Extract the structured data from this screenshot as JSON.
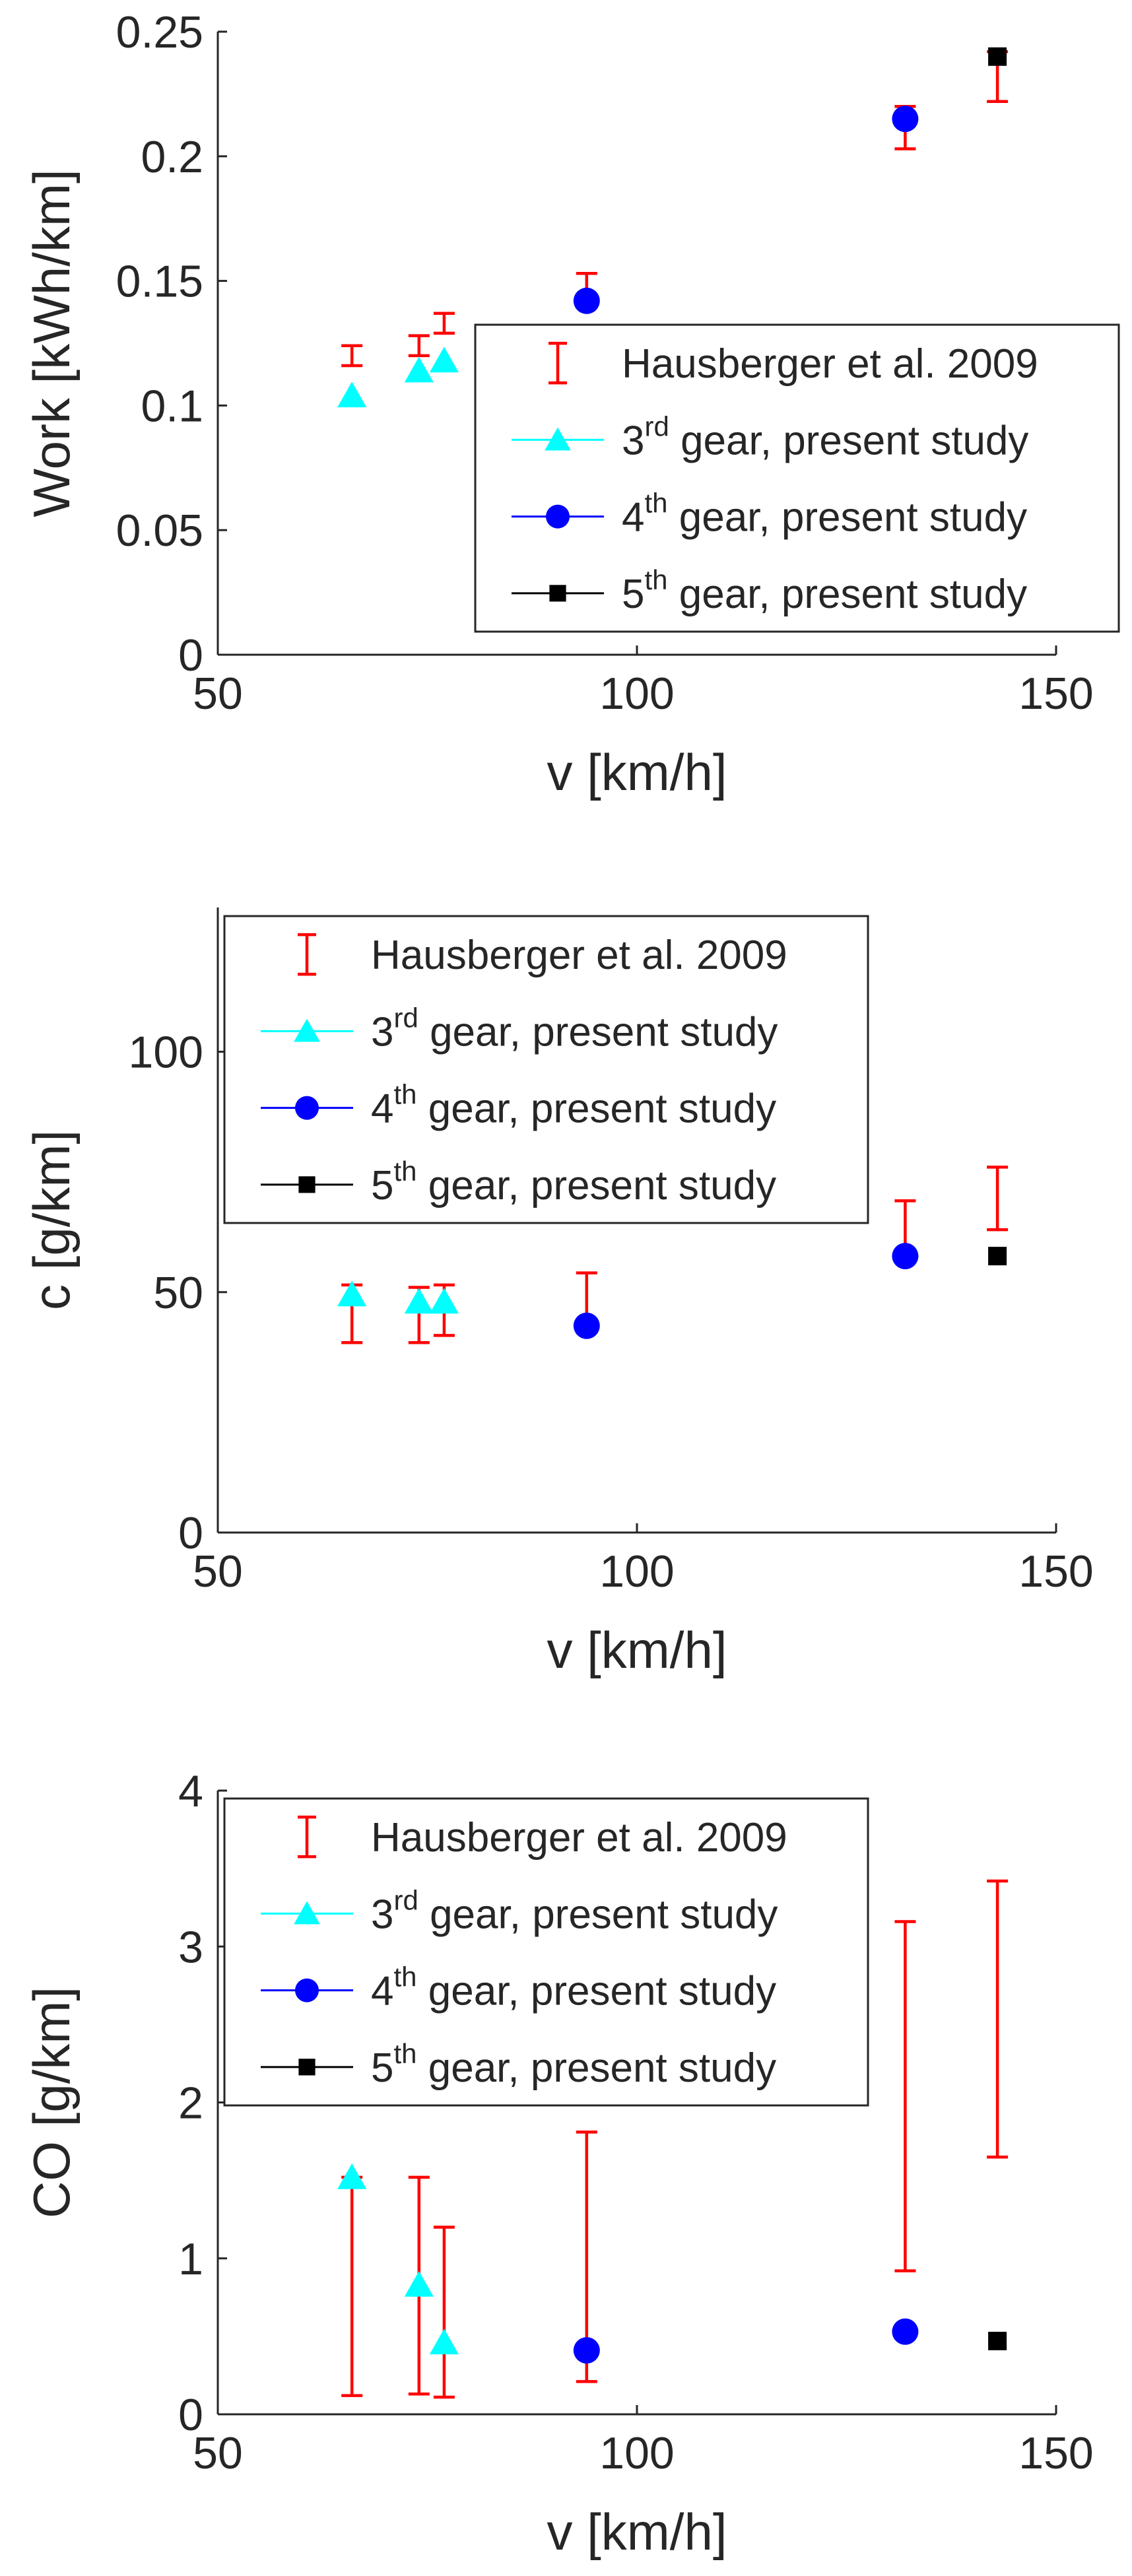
{
  "chart_data": [
    {
      "type": "scatter",
      "xlabel": "v [km/h]",
      "ylabel": "Work [kWh/km]",
      "xlim": [
        50,
        150
      ],
      "ylim": [
        0,
        0.25
      ],
      "xticks": [
        50,
        100,
        150
      ],
      "yticks": [
        0,
        0.05,
        0.1,
        0.15,
        0.2,
        0.25
      ],
      "xtick_labels": [
        "50",
        "100",
        "150"
      ],
      "ytick_labels": [
        "0",
        "0.05",
        "0.1",
        "0.15",
        "0.2",
        "0.25"
      ],
      "grid": false,
      "legend_position": "bottom-right",
      "legend": [
        {
          "key": "hausberger",
          "marker": "errorbar",
          "pre": "Hausberger et al. 2009",
          "sup": "",
          "post": ""
        },
        {
          "key": "gear3",
          "marker": "triangle",
          "pre": "3",
          "sup": "rd",
          "post": " gear, present study"
        },
        {
          "key": "gear4",
          "marker": "circle",
          "pre": "4",
          "sup": "th",
          "post": " gear, present study"
        },
        {
          "key": "gear5",
          "marker": "square",
          "pre": "5",
          "sup": "th",
          "post": " gear, present study"
        }
      ],
      "errorbars": [
        {
          "x": 66,
          "low": 0.116,
          "high": 0.124
        },
        {
          "x": 74,
          "low": 0.12,
          "high": 0.128
        },
        {
          "x": 77,
          "low": 0.129,
          "high": 0.137
        },
        {
          "x": 94,
          "low": 0.144,
          "high": 0.153
        },
        {
          "x": 132,
          "low": 0.203,
          "high": 0.22
        },
        {
          "x": 143,
          "low": 0.222,
          "high": 0.242
        }
      ],
      "series": [
        {
          "gear": "gear3",
          "x": [
            66,
            74,
            77
          ],
          "y": [
            0.104,
            0.114,
            0.118
          ]
        },
        {
          "gear": "gear4",
          "x": [
            94,
            132
          ],
          "y": [
            0.142,
            0.215
          ]
        },
        {
          "gear": "gear5",
          "x": [
            143
          ],
          "y": [
            0.24
          ]
        }
      ]
    },
    {
      "type": "scatter",
      "xlabel": "v [km/h]",
      "ylabel": "c [g/km]",
      "xlim": [
        50,
        150
      ],
      "ylim": [
        0,
        130
      ],
      "xticks": [
        50,
        100,
        150
      ],
      "yticks": [
        0,
        50,
        100
      ],
      "xtick_labels": [
        "50",
        "100",
        "150"
      ],
      "ytick_labels": [
        "0",
        "50",
        "100"
      ],
      "grid": false,
      "legend_position": "top-left",
      "legend": [
        {
          "key": "hausberger",
          "marker": "errorbar",
          "pre": "Hausberger et al. 2009",
          "sup": "",
          "post": ""
        },
        {
          "key": "gear3",
          "marker": "triangle",
          "pre": "3",
          "sup": "rd",
          "post": " gear, present study"
        },
        {
          "key": "gear4",
          "marker": "circle",
          "pre": "4",
          "sup": "th",
          "post": " gear, present study"
        },
        {
          "key": "gear5",
          "marker": "square",
          "pre": "5",
          "sup": "th",
          "post": " gear, present study"
        }
      ],
      "errorbars": [
        {
          "x": 66,
          "low": 39.5,
          "high": 51.5
        },
        {
          "x": 74,
          "low": 39.5,
          "high": 51
        },
        {
          "x": 77,
          "low": 41,
          "high": 51.5
        },
        {
          "x": 94,
          "low": 43,
          "high": 54
        },
        {
          "x": 132,
          "low": 57.5,
          "high": 69
        },
        {
          "x": 143,
          "low": 63,
          "high": 76
        }
      ],
      "series": [
        {
          "gear": "gear3",
          "x": [
            66,
            74,
            77
          ],
          "y": [
            49.5,
            48,
            48
          ]
        },
        {
          "gear": "gear4",
          "x": [
            94,
            132
          ],
          "y": [
            43,
            57.5
          ]
        },
        {
          "gear": "gear5",
          "x": [
            143
          ],
          "y": [
            57.5
          ]
        }
      ]
    },
    {
      "type": "scatter",
      "xlabel": "v [km/h]",
      "ylabel": "CO [g/km]",
      "xlim": [
        50,
        150
      ],
      "ylim": [
        0,
        4
      ],
      "xticks": [
        50,
        100,
        150
      ],
      "yticks": [
        0,
        1,
        2,
        3,
        4
      ],
      "xtick_labels": [
        "50",
        "100",
        "150"
      ],
      "ytick_labels": [
        "0",
        "1",
        "2",
        "3",
        "4"
      ],
      "grid": false,
      "legend_position": "top-left",
      "legend": [
        {
          "key": "hausberger",
          "marker": "errorbar",
          "pre": "Hausberger et al. 2009",
          "sup": "",
          "post": ""
        },
        {
          "key": "gear3",
          "marker": "triangle",
          "pre": "3",
          "sup": "rd",
          "post": " gear, present study"
        },
        {
          "key": "gear4",
          "marker": "circle",
          "pre": "4",
          "sup": "th",
          "post": " gear, present study"
        },
        {
          "key": "gear5",
          "marker": "square",
          "pre": "5",
          "sup": "th",
          "post": " gear, present study"
        }
      ],
      "errorbars": [
        {
          "x": 66,
          "low": 0.12,
          "high": 1.52
        },
        {
          "x": 74,
          "low": 0.13,
          "high": 1.52
        },
        {
          "x": 77,
          "low": 0.11,
          "high": 1.2
        },
        {
          "x": 94,
          "low": 0.21,
          "high": 1.81
        },
        {
          "x": 132,
          "low": 0.92,
          "high": 3.16
        },
        {
          "x": 143,
          "low": 1.65,
          "high": 3.42
        }
      ],
      "series": [
        {
          "gear": "gear3",
          "x": [
            66,
            74,
            77
          ],
          "y": [
            1.52,
            0.83,
            0.46
          ]
        },
        {
          "gear": "gear4",
          "x": [
            94,
            132
          ],
          "y": [
            0.41,
            0.53
          ]
        },
        {
          "gear": "gear5",
          "x": [
            143
          ],
          "y": [
            0.47
          ]
        }
      ]
    }
  ],
  "colors": {
    "hausberger": "#ff0000",
    "gear3": "#00ffff",
    "gear4": "#0000ff",
    "gear5": "#000000",
    "axis": "#262626"
  }
}
